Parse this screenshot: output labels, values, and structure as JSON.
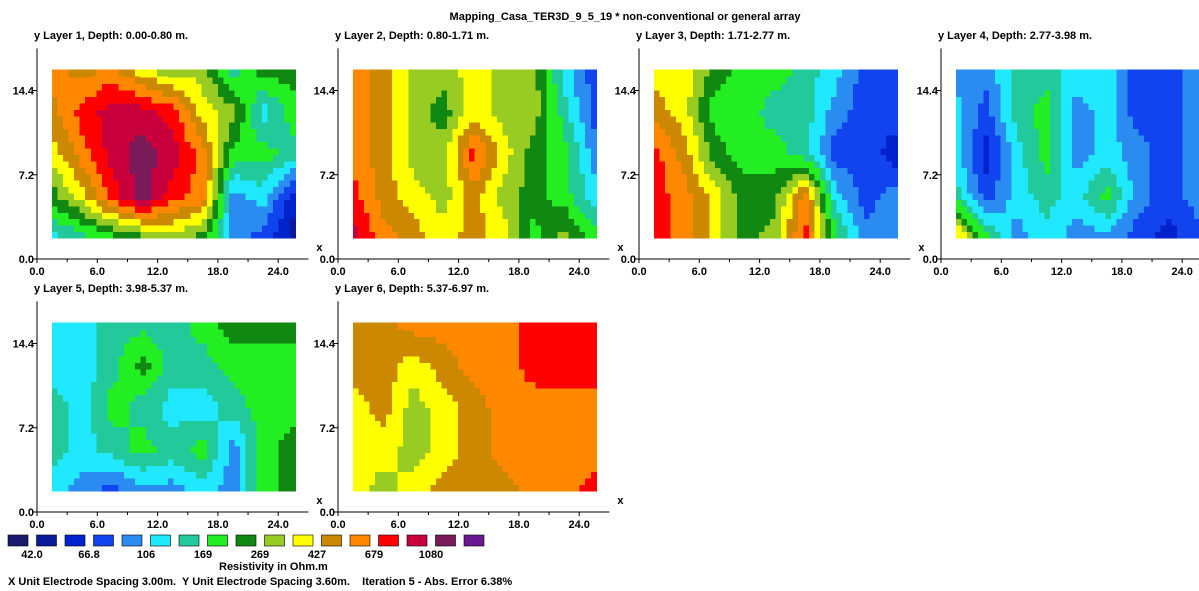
{
  "title": "Mapping_Casa_TER3D_9_5_19  * non-conventional or general array",
  "footer": "X Unit Electrode Spacing 3.00m.  Y Unit Electrode Spacing 3.60m.    Iteration 5 - Abs. Error 6.38%",
  "legend_title": "Resistivity in Ohm.m",
  "legend": {
    "colors": [
      "#1a1a6e",
      "#0a1a99",
      "#0022cc",
      "#1144ee",
      "#2a8cf0",
      "#1fe8ff",
      "#22c99a",
      "#22ee22",
      "#118811",
      "#99cc22",
      "#ffff00",
      "#cc8800",
      "#ff8800",
      "#ff0000",
      "#c8003c",
      "#7a1a5a",
      "#6a1a90"
    ],
    "labels": [
      "42.0",
      "66.8",
      "106",
      "169",
      "269",
      "427",
      "679",
      "1080"
    ]
  },
  "chart_data": [
    {
      "type": "heatmap",
      "title": "y Layer 1, Depth: 0.00-0.80 m.",
      "xlabel": "x",
      "ylabel": "y",
      "xlim": [
        0,
        27
      ],
      "ylim": [
        0,
        18
      ],
      "x_ticks": [
        "0.0",
        "6.0",
        "12.0",
        "18.0",
        "24.0"
      ],
      "y_ticks": [
        "0.0",
        "7.2",
        "14.4"
      ],
      "x": [
        1.5,
        4.5,
        7.5,
        10.5,
        13.5,
        16.5,
        19.5,
        22.5,
        25.5
      ],
      "y": [
        1.8,
        5.4,
        9.0,
        12.6,
        16.2
      ],
      "z": [
        [
          5,
          6,
          7,
          8,
          9,
          8,
          4,
          3,
          1
        ],
        [
          8,
          10,
          13,
          15,
          13,
          12,
          4,
          5,
          2
        ],
        [
          10,
          12,
          14,
          15,
          14,
          12,
          7,
          7,
          6
        ],
        [
          11,
          13,
          14,
          14,
          13,
          10,
          9,
          5,
          7
        ],
        [
          12,
          11,
          12,
          10,
          9,
          9,
          6,
          8,
          8
        ]
      ]
    },
    {
      "type": "heatmap",
      "title": "y Layer 2, Depth: 0.80-1.71 m.",
      "xlabel": "x",
      "ylabel": "y",
      "xlim": [
        0,
        27
      ],
      "ylim": [
        0,
        18
      ],
      "x_ticks": [
        "0.0",
        "6.0",
        "12.0",
        "18.0",
        "24.0"
      ],
      "y_ticks": [
        "0.0",
        "7.2",
        "14.4"
      ],
      "x": [
        1.5,
        4.5,
        7.5,
        10.5,
        13.5,
        16.5,
        19.5,
        22.5,
        25.5
      ],
      "y": [
        1.8,
        5.4,
        9.0,
        12.6,
        16.2
      ],
      "z": [
        [
          14,
          12,
          11,
          10,
          11,
          10,
          7,
          9,
          7
        ],
        [
          13,
          11,
          10,
          9,
          11,
          9,
          8,
          7,
          5
        ],
        [
          12,
          11,
          9,
          9,
          13,
          10,
          8,
          7,
          4
        ],
        [
          12,
          11,
          9,
          8,
          10,
          9,
          9,
          6,
          3
        ],
        [
          12,
          11,
          9,
          9,
          10,
          9,
          9,
          5,
          3
        ]
      ]
    },
    {
      "type": "heatmap",
      "title": "y Layer 3, Depth: 1.71-2.77 m.",
      "xlabel": "x",
      "ylabel": "y",
      "xlim": [
        0,
        27
      ],
      "ylim": [
        0,
        18
      ],
      "x_ticks": [
        "0.0",
        "6.0",
        "12.0",
        "18.0",
        "24.0"
      ],
      "y_ticks": [
        "0.0",
        "7.2",
        "14.4"
      ],
      "x": [
        1.5,
        4.5,
        7.5,
        10.5,
        13.5,
        16.5,
        19.5,
        22.5,
        25.5
      ],
      "y": [
        1.8,
        5.4,
        9.0,
        12.6,
        16.2
      ],
      "z": [
        [
          13,
          12,
          10,
          8,
          9,
          13,
          7,
          4,
          4
        ],
        [
          13,
          12,
          10,
          8,
          8,
          12,
          5,
          3,
          4
        ],
        [
          13,
          11,
          8,
          7,
          7,
          6,
          3,
          3,
          2
        ],
        [
          11,
          10,
          7,
          7,
          6,
          6,
          4,
          3,
          3
        ],
        [
          10,
          10,
          8,
          7,
          7,
          6,
          5,
          3,
          3
        ]
      ]
    },
    {
      "type": "heatmap",
      "title": "y Layer 4, Depth: 2.77-3.98 m.",
      "xlabel": "x",
      "ylabel": "y",
      "xlim": [
        0,
        27
      ],
      "ylim": [
        0,
        18
      ],
      "x_ticks": [
        "0.0",
        "6.0",
        "12.0",
        "18.0",
        "24.0"
      ],
      "y_ticks": [
        "0.0",
        "7.2",
        "14.4"
      ],
      "x": [
        1.5,
        4.5,
        7.5,
        10.5,
        13.5,
        16.5,
        19.5,
        22.5,
        25.5
      ],
      "y": [
        1.8,
        5.4,
        9.0,
        12.6,
        16.2
      ],
      "z": [
        [
          11,
          7,
          4,
          5,
          4,
          4,
          3,
          2,
          3
        ],
        [
          6,
          3,
          5,
          6,
          5,
          7,
          4,
          3,
          4
        ],
        [
          5,
          2,
          5,
          7,
          4,
          5,
          4,
          3,
          4
        ],
        [
          5,
          3,
          6,
          7,
          4,
          5,
          3,
          3,
          4
        ],
        [
          4,
          4,
          6,
          6,
          5,
          5,
          3,
          3,
          4
        ]
      ]
    },
    {
      "type": "heatmap",
      "title": "y Layer 5, Depth: 3.98-5.37 m.",
      "xlabel": "x",
      "ylabel": "y",
      "xlim": [
        0,
        27
      ],
      "ylim": [
        0,
        18
      ],
      "x_ticks": [
        "0.0",
        "6.0",
        "12.0",
        "18.0",
        "24.0"
      ],
      "y_ticks": [
        "0.0",
        "7.2",
        "14.4"
      ],
      "x": [
        1.5,
        4.5,
        7.5,
        10.5,
        13.5,
        16.5,
        19.5,
        22.5,
        25.5
      ],
      "y": [
        1.8,
        5.4,
        9.0,
        12.6,
        16.2
      ],
      "z": [
        [
          5,
          4,
          3,
          4,
          4,
          5,
          4,
          7,
          8
        ],
        [
          6,
          5,
          6,
          7,
          6,
          7,
          4,
          7,
          8
        ],
        [
          6,
          5,
          7,
          6,
          5,
          5,
          6,
          7,
          7
        ],
        [
          5,
          5,
          6,
          8,
          6,
          6,
          7,
          7,
          7
        ],
        [
          5,
          5,
          6,
          6,
          6,
          7,
          8,
          8,
          8
        ]
      ]
    },
    {
      "type": "heatmap",
      "title": "y Layer 6, Depth: 5.37-6.97 m.",
      "xlabel": "x",
      "ylabel": "y",
      "xlim": [
        0,
        27
      ],
      "ylim": [
        0,
        18
      ],
      "x_ticks": [
        "0.0",
        "6.0",
        "12.0",
        "18.0",
        "24.0"
      ],
      "y_ticks": [
        "0.0",
        "7.2",
        "14.4"
      ],
      "x": [
        1.5,
        4.5,
        7.5,
        10.5,
        13.5,
        16.5,
        19.5,
        22.5,
        25.5
      ],
      "y": [
        1.8,
        5.4,
        9.0,
        12.6,
        16.2
      ],
      "z": [
        [
          10,
          9,
          10,
          11,
          11,
          11,
          12,
          12,
          13
        ],
        [
          10,
          10,
          9,
          10,
          11,
          12,
          12,
          12,
          12
        ],
        [
          10,
          11,
          9,
          10,
          11,
          12,
          12,
          12,
          12
        ],
        [
          11,
          11,
          10,
          11,
          12,
          12,
          13,
          13,
          13
        ],
        [
          11,
          11,
          12,
          12,
          12,
          12,
          13,
          13,
          13
        ]
      ]
    }
  ]
}
